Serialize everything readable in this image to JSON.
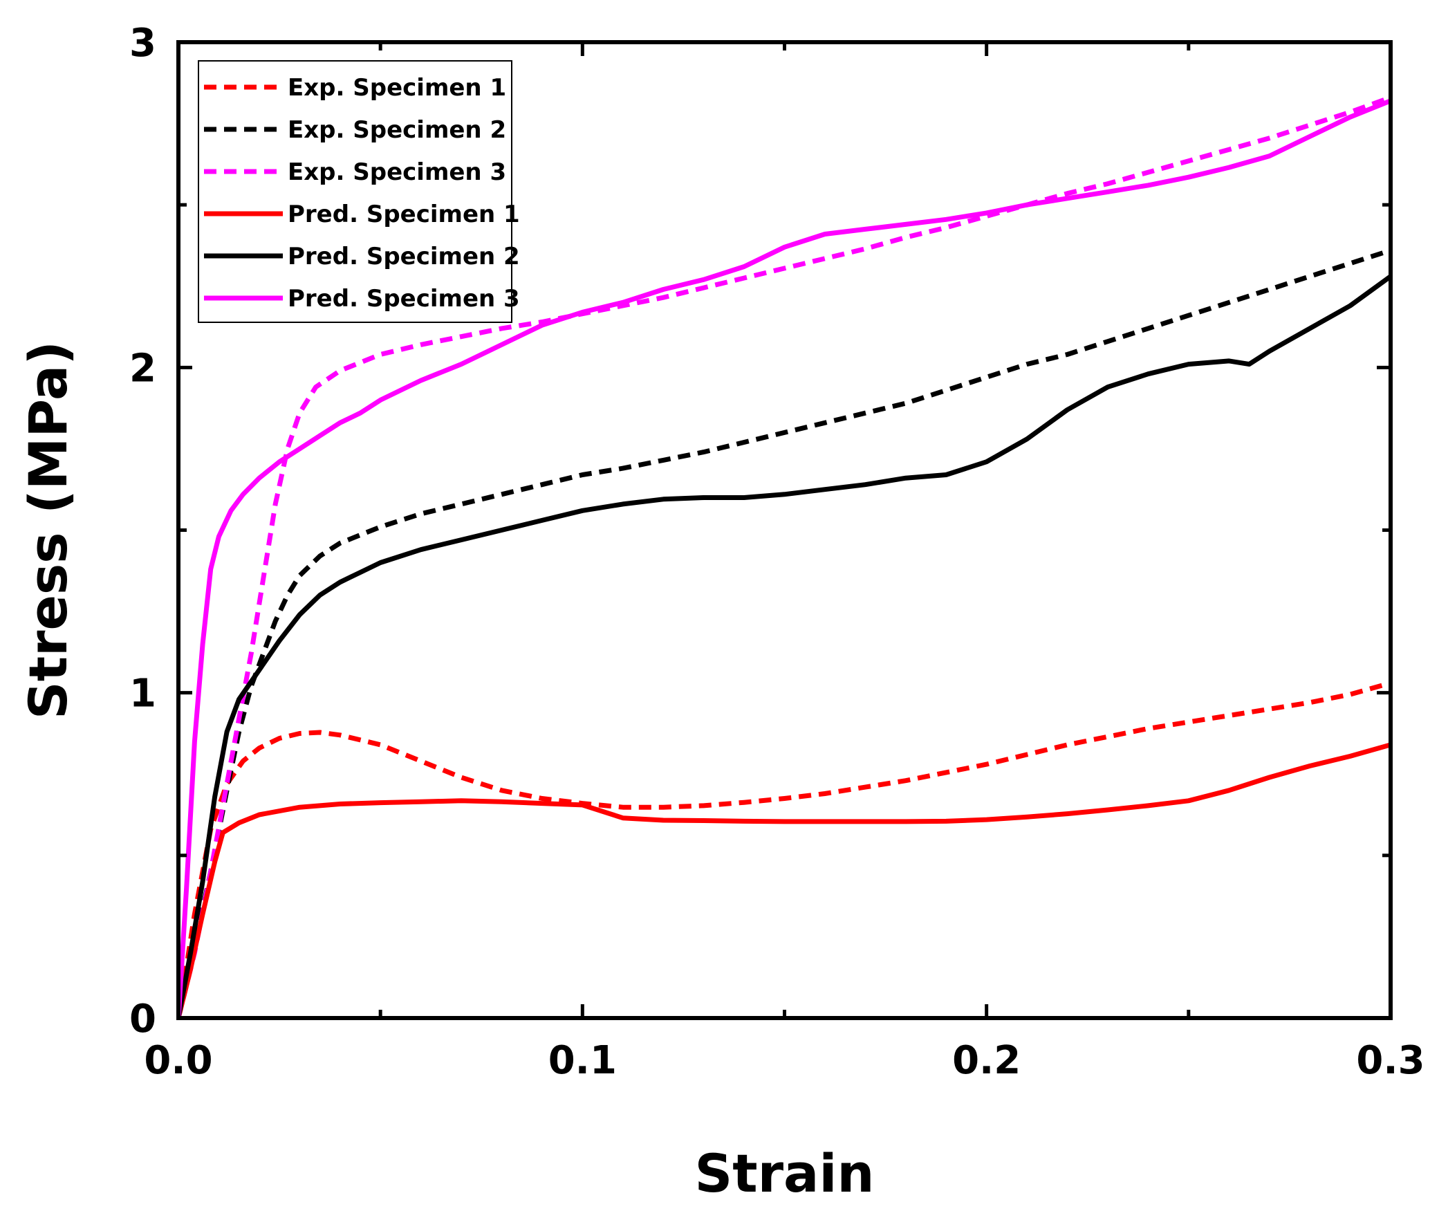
{
  "chart_data": {
    "type": "line",
    "title": "",
    "xlabel": "Strain",
    "ylabel": "Stress (MPa)",
    "xlim": [
      0,
      0.3
    ],
    "ylim": [
      0,
      3
    ],
    "xticks": [
      0.0,
      0.1,
      0.2,
      0.3
    ],
    "xtick_labels": [
      "0.0",
      "0.1",
      "0.2",
      "0.3"
    ],
    "yticks": [
      0,
      1,
      2,
      3
    ],
    "ytick_labels": [
      "0",
      "1",
      "2",
      "3"
    ],
    "legend_position": "top-left",
    "grid": false,
    "series": [
      {
        "name": "Exp. Specimen 1",
        "color": "#ff0000",
        "dash": "dashed",
        "points": [
          [
            0,
            0
          ],
          [
            0.004,
            0.32
          ],
          [
            0.008,
            0.58
          ],
          [
            0.012,
            0.72
          ],
          [
            0.016,
            0.79
          ],
          [
            0.02,
            0.83
          ],
          [
            0.025,
            0.86
          ],
          [
            0.03,
            0.875
          ],
          [
            0.035,
            0.878
          ],
          [
            0.04,
            0.87
          ],
          [
            0.05,
            0.84
          ],
          [
            0.06,
            0.79
          ],
          [
            0.07,
            0.74
          ],
          [
            0.08,
            0.7
          ],
          [
            0.09,
            0.675
          ],
          [
            0.1,
            0.66
          ],
          [
            0.11,
            0.648
          ],
          [
            0.12,
            0.648
          ],
          [
            0.13,
            0.653
          ],
          [
            0.14,
            0.663
          ],
          [
            0.15,
            0.675
          ],
          [
            0.16,
            0.69
          ],
          [
            0.17,
            0.71
          ],
          [
            0.18,
            0.73
          ],
          [
            0.19,
            0.755
          ],
          [
            0.2,
            0.78
          ],
          [
            0.21,
            0.81
          ],
          [
            0.22,
            0.84
          ],
          [
            0.23,
            0.865
          ],
          [
            0.24,
            0.89
          ],
          [
            0.25,
            0.91
          ],
          [
            0.26,
            0.93
          ],
          [
            0.27,
            0.95
          ],
          [
            0.28,
            0.97
          ],
          [
            0.29,
            0.995
          ],
          [
            0.3,
            1.03
          ]
        ]
      },
      {
        "name": "Exp. Specimen 2",
        "color": "#000000",
        "dash": "dashed",
        "points": [
          [
            0,
            0
          ],
          [
            0.004,
            0.22
          ],
          [
            0.008,
            0.45
          ],
          [
            0.012,
            0.7
          ],
          [
            0.015,
            0.88
          ],
          [
            0.018,
            1.02
          ],
          [
            0.021,
            1.12
          ],
          [
            0.024,
            1.22
          ],
          [
            0.027,
            1.3
          ],
          [
            0.03,
            1.36
          ],
          [
            0.035,
            1.42
          ],
          [
            0.04,
            1.46
          ],
          [
            0.05,
            1.51
          ],
          [
            0.06,
            1.55
          ],
          [
            0.07,
            1.58
          ],
          [
            0.08,
            1.61
          ],
          [
            0.09,
            1.64
          ],
          [
            0.1,
            1.67
          ],
          [
            0.11,
            1.69
          ],
          [
            0.12,
            1.715
          ],
          [
            0.13,
            1.74
          ],
          [
            0.14,
            1.77
          ],
          [
            0.15,
            1.8
          ],
          [
            0.16,
            1.83
          ],
          [
            0.17,
            1.86
          ],
          [
            0.18,
            1.89
          ],
          [
            0.19,
            1.93
          ],
          [
            0.2,
            1.97
          ],
          [
            0.21,
            2.01
          ],
          [
            0.22,
            2.04
          ],
          [
            0.23,
            2.08
          ],
          [
            0.24,
            2.12
          ],
          [
            0.25,
            2.16
          ],
          [
            0.26,
            2.2
          ],
          [
            0.27,
            2.24
          ],
          [
            0.28,
            2.28
          ],
          [
            0.29,
            2.32
          ],
          [
            0.3,
            2.36
          ]
        ]
      },
      {
        "name": "Exp. Specimen 3",
        "color": "#ff00ff",
        "dash": "dashed",
        "points": [
          [
            0,
            0
          ],
          [
            0.004,
            0.2
          ],
          [
            0.008,
            0.45
          ],
          [
            0.012,
            0.72
          ],
          [
            0.015,
            0.92
          ],
          [
            0.018,
            1.12
          ],
          [
            0.021,
            1.35
          ],
          [
            0.024,
            1.58
          ],
          [
            0.027,
            1.75
          ],
          [
            0.03,
            1.86
          ],
          [
            0.034,
            1.94
          ],
          [
            0.04,
            1.99
          ],
          [
            0.05,
            2.04
          ],
          [
            0.06,
            2.07
          ],
          [
            0.07,
            2.095
          ],
          [
            0.08,
            2.12
          ],
          [
            0.09,
            2.14
          ],
          [
            0.1,
            2.165
          ],
          [
            0.11,
            2.19
          ],
          [
            0.12,
            2.215
          ],
          [
            0.13,
            2.245
          ],
          [
            0.14,
            2.275
          ],
          [
            0.15,
            2.305
          ],
          [
            0.16,
            2.335
          ],
          [
            0.17,
            2.365
          ],
          [
            0.18,
            2.4
          ],
          [
            0.19,
            2.43
          ],
          [
            0.2,
            2.465
          ],
          [
            0.21,
            2.5
          ],
          [
            0.22,
            2.535
          ],
          [
            0.23,
            2.565
          ],
          [
            0.24,
            2.6
          ],
          [
            0.25,
            2.635
          ],
          [
            0.26,
            2.67
          ],
          [
            0.27,
            2.705
          ],
          [
            0.28,
            2.745
          ],
          [
            0.29,
            2.785
          ],
          [
            0.3,
            2.83
          ]
        ]
      },
      {
        "name": "Pred. Specimen 1",
        "color": "#ff0000",
        "dash": "solid",
        "points": [
          [
            0,
            0
          ],
          [
            0.003,
            0.15
          ],
          [
            0.006,
            0.32
          ],
          [
            0.009,
            0.48
          ],
          [
            0.011,
            0.57
          ],
          [
            0.015,
            0.6
          ],
          [
            0.02,
            0.625
          ],
          [
            0.03,
            0.648
          ],
          [
            0.04,
            0.658
          ],
          [
            0.05,
            0.662
          ],
          [
            0.06,
            0.665
          ],
          [
            0.07,
            0.668
          ],
          [
            0.08,
            0.665
          ],
          [
            0.09,
            0.66
          ],
          [
            0.1,
            0.655
          ],
          [
            0.11,
            0.615
          ],
          [
            0.12,
            0.608
          ],
          [
            0.13,
            0.607
          ],
          [
            0.14,
            0.605
          ],
          [
            0.15,
            0.604
          ],
          [
            0.16,
            0.604
          ],
          [
            0.17,
            0.604
          ],
          [
            0.18,
            0.604
          ],
          [
            0.19,
            0.605
          ],
          [
            0.2,
            0.61
          ],
          [
            0.21,
            0.618
          ],
          [
            0.22,
            0.628
          ],
          [
            0.23,
            0.64
          ],
          [
            0.24,
            0.653
          ],
          [
            0.25,
            0.668
          ],
          [
            0.26,
            0.7
          ],
          [
            0.27,
            0.74
          ],
          [
            0.28,
            0.775
          ],
          [
            0.29,
            0.805
          ],
          [
            0.3,
            0.84
          ]
        ]
      },
      {
        "name": "Pred. Specimen 2",
        "color": "#000000",
        "dash": "solid",
        "points": [
          [
            0,
            0
          ],
          [
            0.003,
            0.2
          ],
          [
            0.006,
            0.42
          ],
          [
            0.009,
            0.68
          ],
          [
            0.012,
            0.88
          ],
          [
            0.015,
            0.98
          ],
          [
            0.02,
            1.07
          ],
          [
            0.025,
            1.16
          ],
          [
            0.03,
            1.24
          ],
          [
            0.035,
            1.3
          ],
          [
            0.04,
            1.34
          ],
          [
            0.045,
            1.37
          ],
          [
            0.05,
            1.4
          ],
          [
            0.06,
            1.44
          ],
          [
            0.07,
            1.47
          ],
          [
            0.08,
            1.5
          ],
          [
            0.09,
            1.53
          ],
          [
            0.1,
            1.56
          ],
          [
            0.11,
            1.58
          ],
          [
            0.12,
            1.595
          ],
          [
            0.13,
            1.6
          ],
          [
            0.14,
            1.6
          ],
          [
            0.15,
            1.61
          ],
          [
            0.16,
            1.625
          ],
          [
            0.17,
            1.64
          ],
          [
            0.18,
            1.66
          ],
          [
            0.19,
            1.67
          ],
          [
            0.2,
            1.71
          ],
          [
            0.21,
            1.78
          ],
          [
            0.22,
            1.87
          ],
          [
            0.23,
            1.94
          ],
          [
            0.24,
            1.98
          ],
          [
            0.25,
            2.01
          ],
          [
            0.26,
            2.02
          ],
          [
            0.265,
            2.01
          ],
          [
            0.27,
            2.05
          ],
          [
            0.28,
            2.12
          ],
          [
            0.29,
            2.19
          ],
          [
            0.3,
            2.28
          ]
        ]
      },
      {
        "name": "Pred. Specimen 3",
        "color": "#ff00ff",
        "dash": "solid",
        "points": [
          [
            0,
            0
          ],
          [
            0.002,
            0.4
          ],
          [
            0.004,
            0.85
          ],
          [
            0.006,
            1.15
          ],
          [
            0.008,
            1.38
          ],
          [
            0.01,
            1.48
          ],
          [
            0.013,
            1.56
          ],
          [
            0.016,
            1.61
          ],
          [
            0.02,
            1.66
          ],
          [
            0.025,
            1.71
          ],
          [
            0.03,
            1.75
          ],
          [
            0.035,
            1.79
          ],
          [
            0.04,
            1.83
          ],
          [
            0.045,
            1.86
          ],
          [
            0.05,
            1.9
          ],
          [
            0.06,
            1.96
          ],
          [
            0.07,
            2.01
          ],
          [
            0.08,
            2.07
          ],
          [
            0.09,
            2.13
          ],
          [
            0.1,
            2.17
          ],
          [
            0.11,
            2.2
          ],
          [
            0.12,
            2.24
          ],
          [
            0.13,
            2.27
          ],
          [
            0.14,
            2.31
          ],
          [
            0.15,
            2.37
          ],
          [
            0.16,
            2.41
          ],
          [
            0.17,
            2.425
          ],
          [
            0.18,
            2.44
          ],
          [
            0.19,
            2.455
          ],
          [
            0.2,
            2.475
          ],
          [
            0.21,
            2.5
          ],
          [
            0.22,
            2.52
          ],
          [
            0.23,
            2.54
          ],
          [
            0.24,
            2.56
          ],
          [
            0.25,
            2.585
          ],
          [
            0.26,
            2.615
          ],
          [
            0.27,
            2.65
          ],
          [
            0.28,
            2.71
          ],
          [
            0.29,
            2.77
          ],
          [
            0.3,
            2.82
          ]
        ]
      }
    ]
  }
}
